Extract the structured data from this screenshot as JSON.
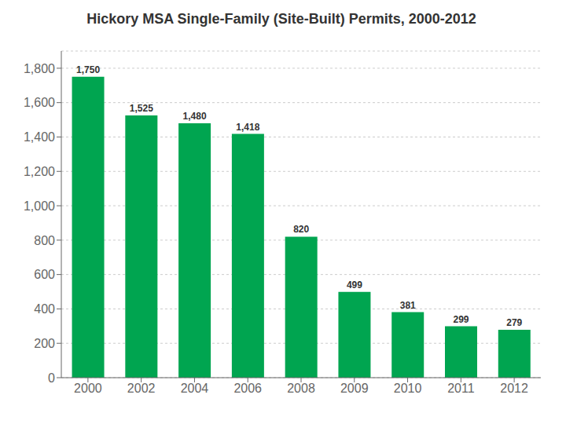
{
  "chart_data": {
    "type": "bar",
    "title": "Hickory MSA Single-Family (Site-Built) Permits, 2000-2012",
    "categories": [
      "2000",
      "2002",
      "2004",
      "2006",
      "2008",
      "2009",
      "2010",
      "2011",
      "2012"
    ],
    "values": [
      1750,
      1525,
      1480,
      1418,
      820,
      499,
      381,
      299,
      279
    ],
    "value_labels": [
      "1,750",
      "1,525",
      "1,480",
      "1,418",
      "820",
      "499",
      "381",
      "299",
      "279"
    ],
    "data_labels": true,
    "color": "#00A550",
    "ylim": [
      0,
      1900
    ],
    "yticks": [
      0,
      200,
      400,
      600,
      800,
      {
        "value": 1000,
        "label": "1,000"
      },
      {
        "value": 1200,
        "label": "1,200"
      },
      {
        "value": 1400,
        "label": "1,400"
      },
      {
        "value": 1600,
        "label": "1,600"
      },
      {
        "value": 1800,
        "label": "1,800"
      }
    ],
    "grid": true
  }
}
